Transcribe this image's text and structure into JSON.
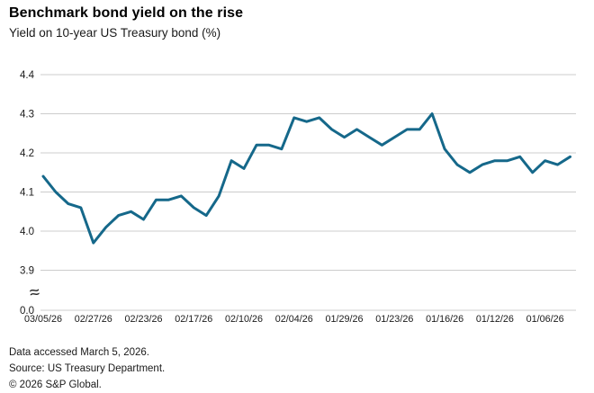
{
  "header": {
    "title": "Benchmark bond yield on the rise",
    "subtitle": "Yield on 10-year US Treasury bond (%)"
  },
  "footer": {
    "accessed": "Data accessed March 5, 2026.",
    "source": "Source: US Treasury Department.",
    "copyright": "© 2026 S&P Global."
  },
  "chart_data": {
    "type": "line",
    "title": "Benchmark bond yield on the rise",
    "ylabel": "Yield on 10-year US Treasury bond (%)",
    "xlabel": "",
    "x_axis_note": "dates run newest (left) to oldest (right), one point per business day",
    "x_tick_labels": [
      "03/05/26",
      "02/27/26",
      "02/23/26",
      "02/17/26",
      "02/10/26",
      "02/04/26",
      "01/29/26",
      "01/23/26",
      "01/16/26",
      "01/12/26",
      "01/06/26"
    ],
    "x_tick_every": 4,
    "y_ticks": [
      4.4,
      4.3,
      4.2,
      4.1,
      4.0,
      3.9
    ],
    "y_baseline_label": "0.0",
    "y_axis_break": true,
    "ylim_display": [
      3.9,
      4.4
    ],
    "grid": "horizontal",
    "legend": "none",
    "line_color": "#15688a",
    "gridline_color": "#cccccc",
    "series": [
      {
        "name": "Yield on 10-year US Treasury bond (%)",
        "values": [
          4.14,
          4.1,
          4.07,
          4.06,
          3.97,
          4.01,
          4.04,
          4.05,
          4.03,
          4.08,
          4.08,
          4.09,
          4.06,
          4.04,
          4.09,
          4.18,
          4.16,
          4.22,
          4.22,
          4.21,
          4.29,
          4.28,
          4.29,
          4.26,
          4.24,
          4.26,
          4.24,
          4.22,
          4.24,
          4.26,
          4.26,
          4.3,
          4.21,
          4.17,
          4.15,
          4.17,
          4.18,
          4.18,
          4.19,
          4.15,
          4.18,
          4.17,
          4.19
        ]
      }
    ]
  }
}
